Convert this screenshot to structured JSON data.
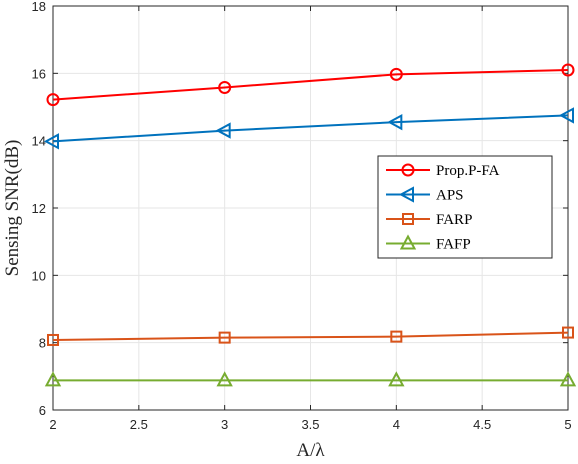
{
  "chart_data": {
    "type": "line",
    "xlabel": "A/λ",
    "ylabel": "Sensing SNR(dB)",
    "xlim": [
      2,
      5
    ],
    "ylim": [
      6,
      18
    ],
    "xticks": [
      "2",
      "2.5",
      "3",
      "3.5",
      "4",
      "4.5",
      "5"
    ],
    "yticks": [
      "6",
      "8",
      "10",
      "12",
      "14",
      "16",
      "18"
    ],
    "grid": true,
    "legend_position": "right-center",
    "x": [
      2,
      3,
      4,
      5
    ],
    "series": [
      {
        "name": "Prop.P-FA",
        "color": "#ff0000",
        "marker": "circle",
        "values": [
          15.22,
          15.58,
          15.97,
          16.1
        ]
      },
      {
        "name": "APS",
        "color": "#0072bd",
        "marker": "triangle-left",
        "values": [
          13.98,
          14.3,
          14.55,
          14.75
        ]
      },
      {
        "name": "FARP",
        "color": "#d95319",
        "marker": "square",
        "values": [
          8.08,
          8.15,
          8.18,
          8.3
        ]
      },
      {
        "name": "FAFP",
        "color": "#77ac30",
        "marker": "triangle-up",
        "values": [
          6.88,
          6.88,
          6.88,
          6.88
        ]
      }
    ]
  }
}
